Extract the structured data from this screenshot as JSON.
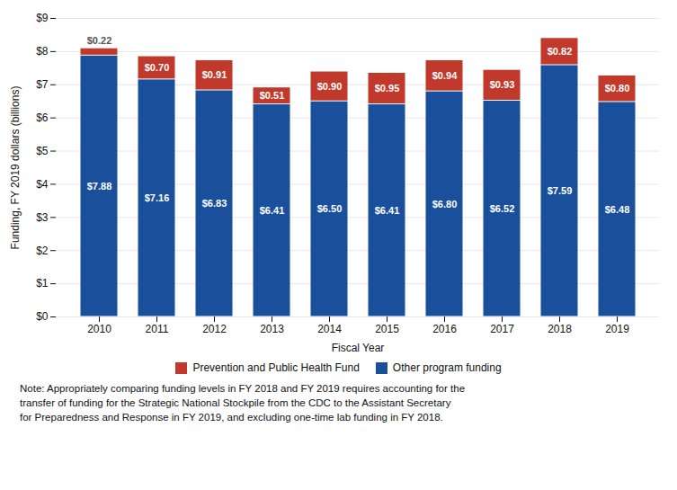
{
  "chart_data": {
    "type": "bar",
    "stacked": true,
    "data_labels": true,
    "grid": true,
    "xlabel": "Fiscal Year",
    "ylabel": "Funding, FY 2019 dollars (billions)",
    "categories": [
      "2010",
      "2011",
      "2012",
      "2013",
      "2014",
      "2015",
      "2016",
      "2017",
      "2018",
      "2019"
    ],
    "series": [
      {
        "name": "Other program funding",
        "color": "#1a4f9c",
        "values": [
          7.88,
          7.16,
          6.83,
          6.41,
          6.5,
          6.41,
          6.8,
          6.52,
          7.59,
          6.48
        ],
        "value_labels": [
          "$7.88",
          "$7.16",
          "$6.83",
          "$6.41",
          "$6.50",
          "$6.41",
          "$6.80",
          "$6.52",
          "$7.59",
          "$6.48"
        ]
      },
      {
        "name": "Prevention and Public Health Fund",
        "color": "#c0392b",
        "values": [
          0.22,
          0.7,
          0.91,
          0.51,
          0.9,
          0.95,
          0.94,
          0.93,
          0.82,
          0.8
        ],
        "value_labels": [
          "$0.22",
          "$0.70",
          "$0.91",
          "$0.51",
          "$0.90",
          "$0.95",
          "$0.94",
          "$0.93",
          "$0.82",
          "$0.80"
        ]
      }
    ],
    "ylim": [
      0,
      9
    ],
    "yticks": [
      {
        "value": 0,
        "label": "$0"
      },
      {
        "value": 1,
        "label": "$1"
      },
      {
        "value": 2,
        "label": "$2"
      },
      {
        "value": 3,
        "label": "$3"
      },
      {
        "value": 4,
        "label": "$4"
      },
      {
        "value": 5,
        "label": "$5"
      },
      {
        "value": 6,
        "label": "$6"
      },
      {
        "value": 7,
        "label": "$7"
      },
      {
        "value": 8,
        "label": "$8"
      },
      {
        "value": 9,
        "label": "$9"
      }
    ],
    "annotations": [
      "Note: Appropriately comparing funding levels in FY 2018 and FY 2019 requires accounting for the",
      "transfer of funding for the Strategic National Stockpile from the CDC to the Assistant Secretary",
      "for Preparedness and Response in FY 2019, and excluding one-time lab funding in FY 2018."
    ]
  }
}
